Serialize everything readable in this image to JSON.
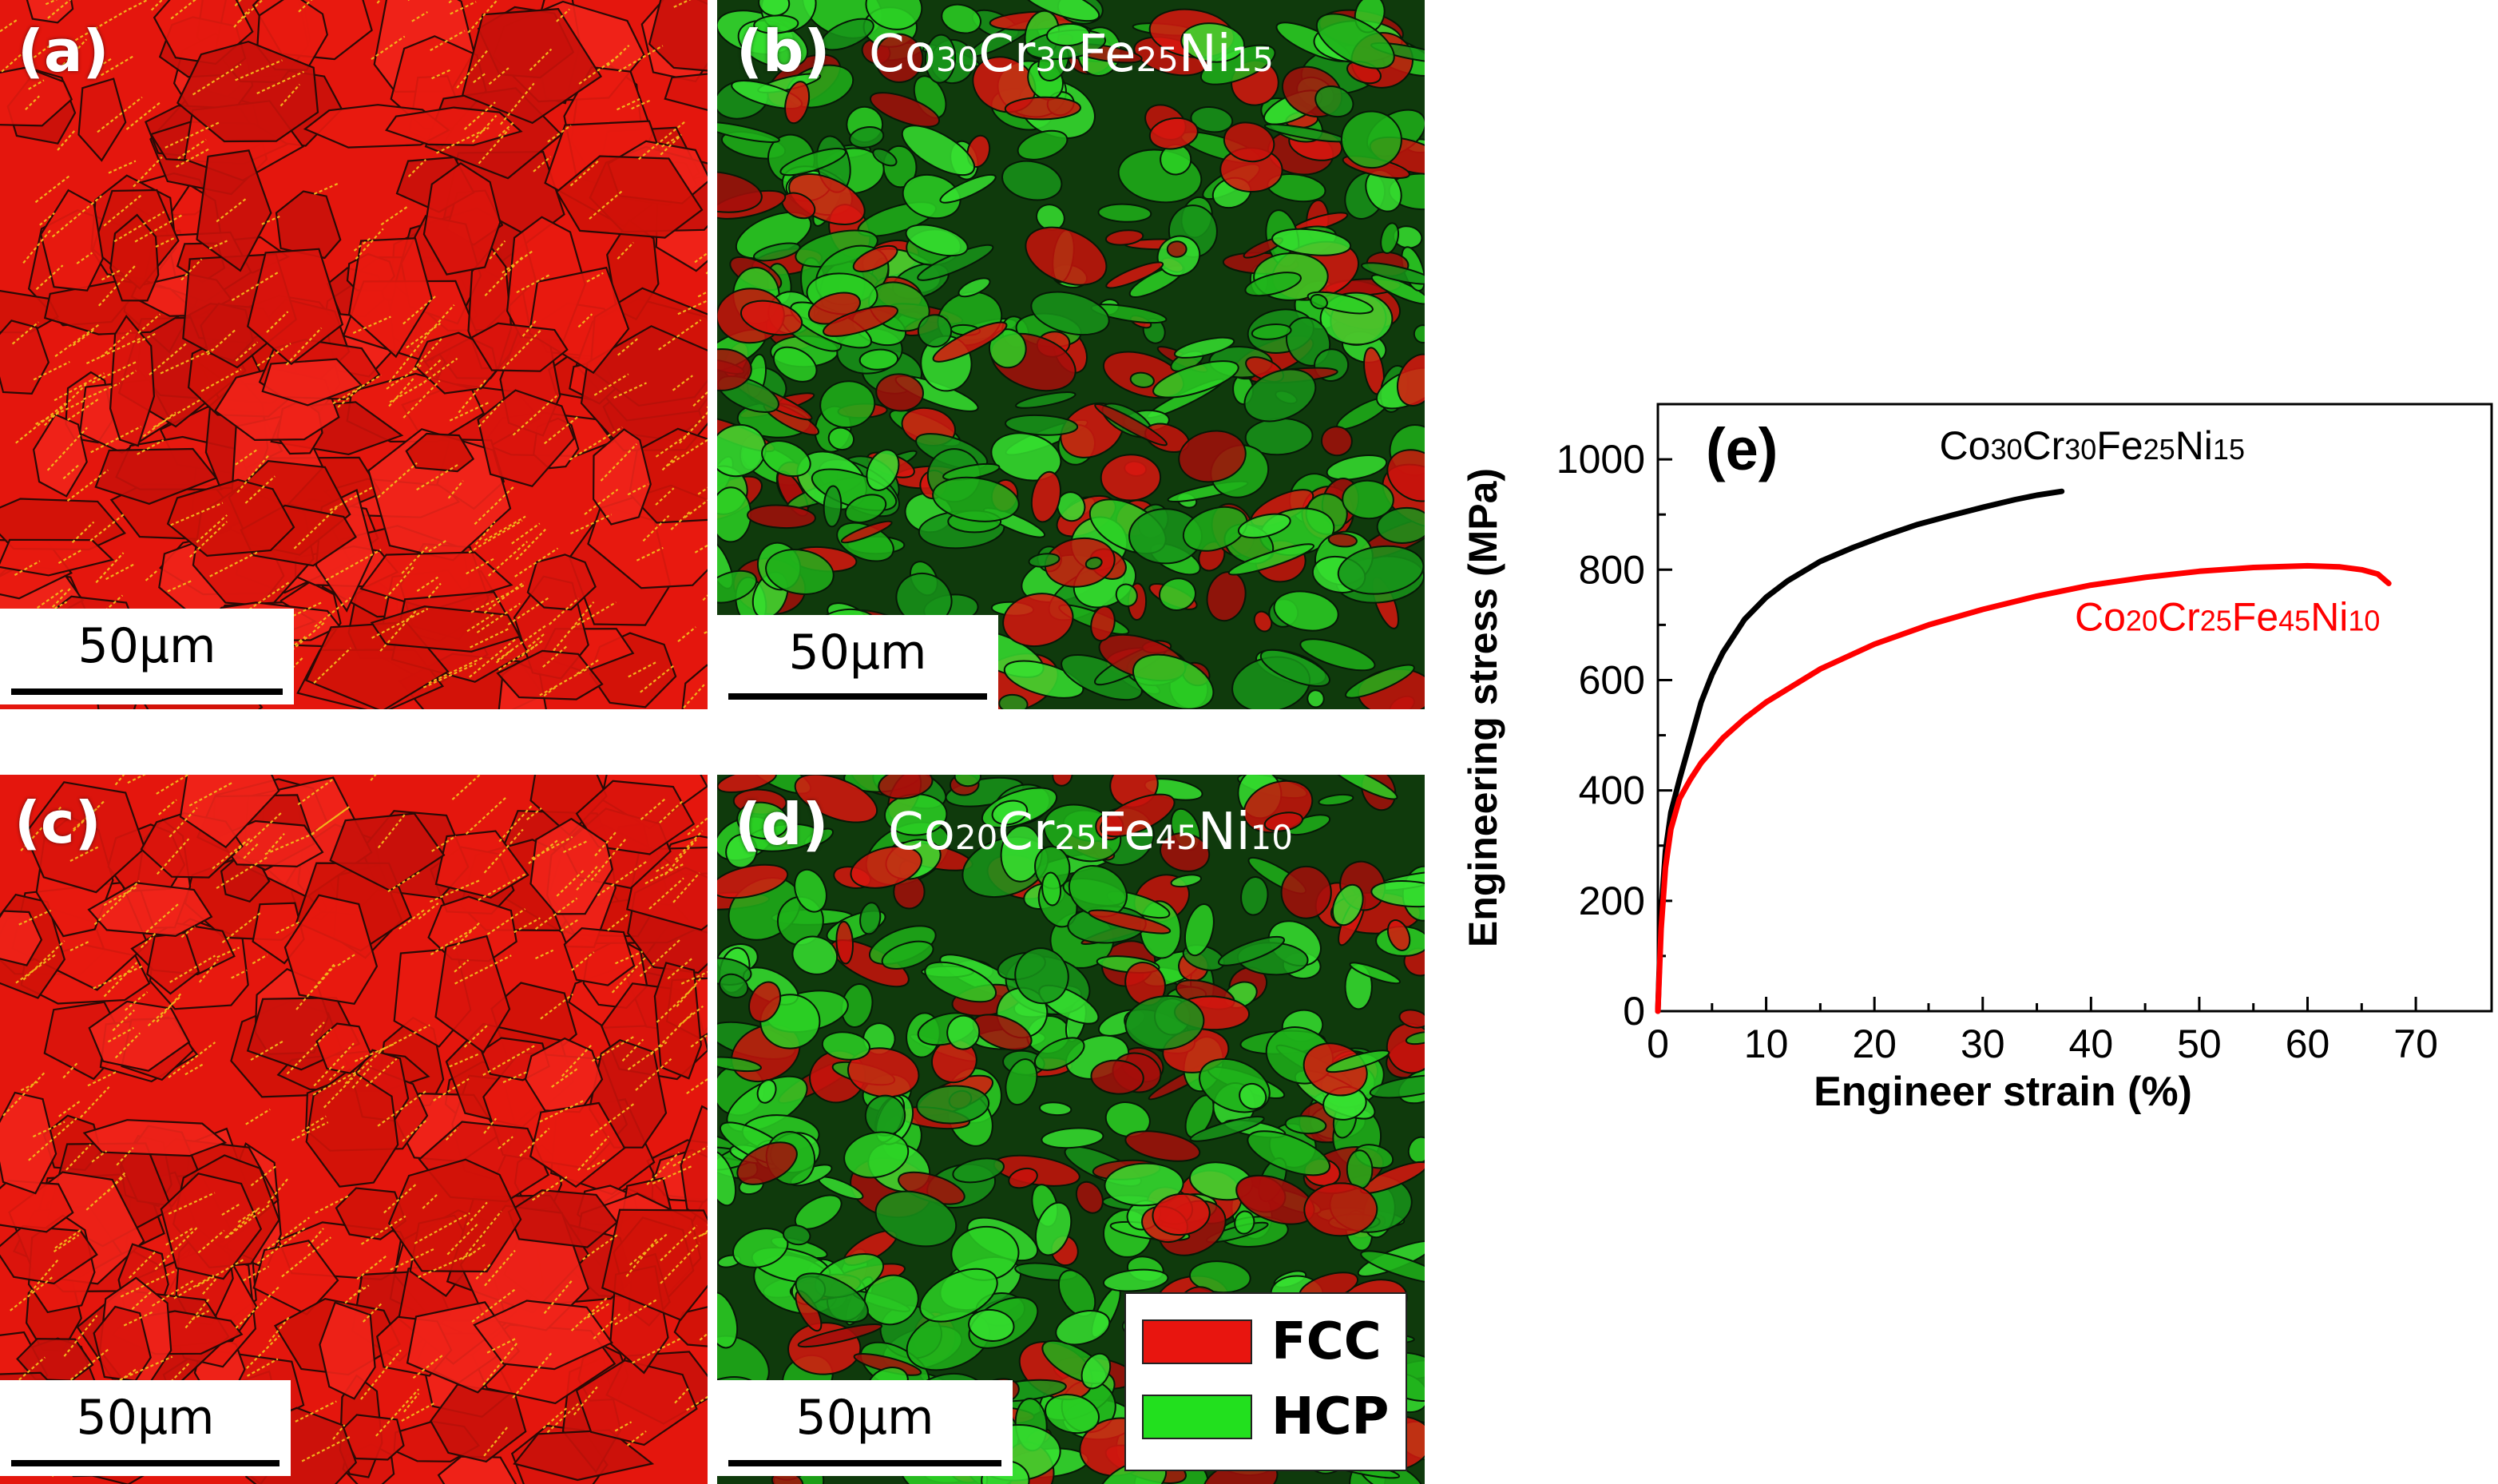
{
  "figure": {
    "panels": [
      {
        "id": "a",
        "label": "(a)",
        "title": "",
        "scale_bar": "50µm",
        "phase_map": false
      },
      {
        "id": "b",
        "label": "(b)",
        "title": {
          "base": [
            "Co",
            "Cr",
            "Fe",
            "Ni"
          ],
          "sub": [
            "30",
            "30",
            "25",
            "15"
          ]
        },
        "scale_bar": "50µm",
        "phase_map": true
      },
      {
        "id": "c",
        "label": "(c)",
        "title": "",
        "scale_bar": "50µm",
        "phase_map": false
      },
      {
        "id": "d",
        "label": "(d)",
        "title": {
          "base": [
            "Co",
            "Cr",
            "Fe",
            "Ni"
          ],
          "sub": [
            "20",
            "25",
            "45",
            "10"
          ]
        },
        "scale_bar": "50µm",
        "phase_map": true
      }
    ],
    "legend": {
      "items": [
        {
          "label": "FCC",
          "color": "#e8150f"
        },
        {
          "label": "HCP",
          "color": "#22e01e"
        }
      ]
    },
    "colors": {
      "ipf_red": "#e4160d",
      "boundary_yellow": "#f2b21b",
      "grain_boundary": "#2a0a06",
      "fcc_red": "#c8120c",
      "hcp_green": "#1fb01a"
    }
  },
  "chart_data": {
    "type": "line",
    "panel_label": "(e)",
    "xlabel": "Engineer strain (%)",
    "ylabel": "Engineering stress (MPa)",
    "xlim": [
      0,
      77
    ],
    "ylim": [
      0,
      1100
    ],
    "xticks": [
      0,
      10,
      20,
      30,
      40,
      50,
      60,
      70
    ],
    "yticks": [
      0,
      200,
      400,
      600,
      800,
      1000
    ],
    "series": [
      {
        "name": "Co30Cr30Fe25Ni15",
        "label_base": [
          "Co",
          "Cr",
          "Fe",
          "Ni"
        ],
        "label_sub": [
          "30",
          "30",
          "25",
          "15"
        ],
        "color": "#000000",
        "x": [
          0,
          0.3,
          0.7,
          1.2,
          2,
          3,
          4,
          5,
          6,
          8,
          10,
          12,
          15,
          18,
          21,
          24,
          27,
          30,
          33,
          35,
          37.3
        ],
        "y": [
          0,
          180,
          290,
          360,
          420,
          490,
          560,
          610,
          650,
          710,
          750,
          780,
          815,
          840,
          862,
          882,
          898,
          913,
          927,
          935,
          942
        ]
      },
      {
        "name": "Co20Cr25Fe45Ni10",
        "label_base": [
          "Co",
          "Cr",
          "Fe",
          "Ni"
        ],
        "label_sub": [
          "20",
          "25",
          "45",
          "10"
        ],
        "color": "#ff0000",
        "x": [
          0,
          0.3,
          0.7,
          1.2,
          2,
          3,
          4,
          6,
          8,
          10,
          15,
          20,
          25,
          30,
          35,
          40,
          45,
          50,
          55,
          60,
          63,
          65,
          66.5,
          67.5
        ],
        "y": [
          0,
          150,
          260,
          330,
          385,
          420,
          450,
          495,
          530,
          560,
          620,
          665,
          700,
          728,
          752,
          772,
          786,
          797,
          804,
          807,
          805,
          800,
          792,
          775
        ]
      }
    ]
  }
}
